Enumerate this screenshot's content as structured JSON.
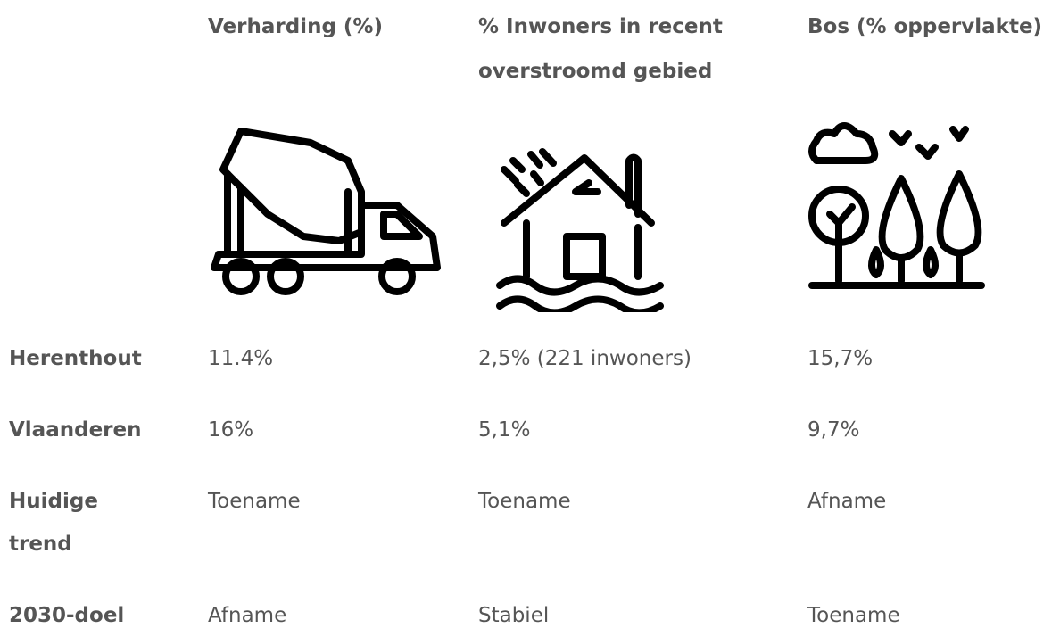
{
  "table": {
    "columns": [
      "Verharding (%)",
      "% Inwoners in recent overstroomd gebied",
      "Bos (% opper­vlakte)"
    ],
    "rows": [
      [
        "Herenthout",
        "11.4%",
        "2,5% (221 inwoners)",
        "15,7%"
      ],
      [
        "Vlaanderen",
        "16%",
        "5,1%",
        "9,7%"
      ],
      [
        "Huidige trend",
        "Toename",
        "Toename",
        "Afname"
      ],
      [
        "2030-doel",
        "Afname",
        "Stabiel",
        "Toename"
      ]
    ]
  }
}
